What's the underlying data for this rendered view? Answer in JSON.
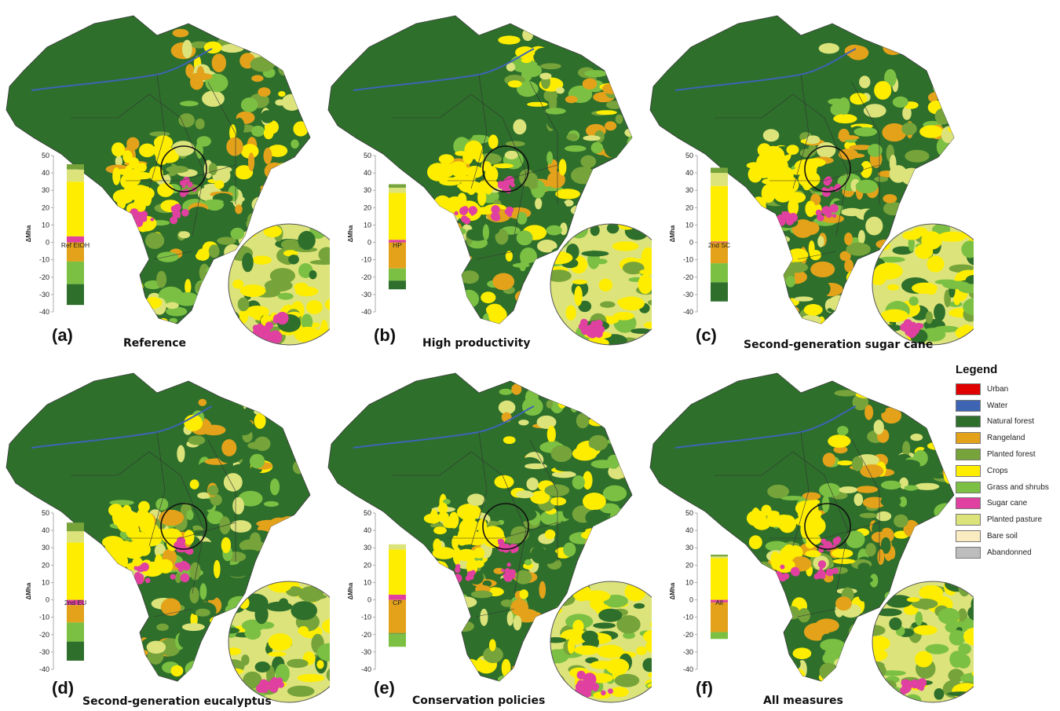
{
  "figure": {
    "panels": [
      {
        "letter": "(a)",
        "title": "Reference",
        "bar_label": "Ref EtOH"
      },
      {
        "letter": "(b)",
        "title": "High productivity",
        "bar_label": "HP"
      },
      {
        "letter": "(c)",
        "title": "Second-generation sugar cane",
        "bar_label": "2nd SC"
      },
      {
        "letter": "(d)",
        "title": "Second-generation eucalyptus",
        "bar_label": "2nd EU"
      },
      {
        "letter": "(e)",
        "title": "Conservation policies",
        "bar_label": "CP"
      },
      {
        "letter": "(f)",
        "title": "All measures",
        "bar_label": "All"
      }
    ],
    "bar_axis": {
      "label": "ΔMha",
      "ticks": [
        "50",
        "40",
        "30",
        "20",
        "10",
        "0",
        "-10",
        "-20",
        "-30",
        "-40"
      ],
      "ylim": [
        -40,
        50
      ]
    }
  },
  "legend": {
    "title": "Legend",
    "items": [
      {
        "label": "Urban",
        "color": "#e00000"
      },
      {
        "label": "Water",
        "color": "#3e64b4"
      },
      {
        "label": "Natural forest",
        "color": "#2e6f2b"
      },
      {
        "label": "Rangeland",
        "color": "#e3a21a"
      },
      {
        "label": "Planted forest",
        "color": "#76a33a"
      },
      {
        "label": "Crops",
        "color": "#ffed00"
      },
      {
        "label": "Grass and shrubs",
        "color": "#7bc043"
      },
      {
        "label": "Sugar cane",
        "color": "#e040a0"
      },
      {
        "label": "Planted pasture",
        "color": "#dbe37a"
      },
      {
        "label": "Bare soil",
        "color": "#fbebc0"
      },
      {
        "label": "Abandonned",
        "color": "#bdbdbd"
      }
    ]
  },
  "chart_data": [
    {
      "type": "bar",
      "title": "Reference",
      "category": "Ref EtOH",
      "stack_units": "ΔMha",
      "ylim": [
        -40,
        50
      ],
      "positive": [
        {
          "class": "Sugar cane",
          "value": 3.5
        },
        {
          "class": "Crops",
          "value": 31.5
        },
        {
          "class": "Planted pasture",
          "value": 7
        },
        {
          "class": "Planted forest",
          "value": 3
        }
      ],
      "negative": [
        {
          "class": "Rangeland",
          "value": -11
        },
        {
          "class": "Grass and shrubs",
          "value": -13
        },
        {
          "class": "Natural forest",
          "value": -12
        }
      ]
    },
    {
      "type": "bar",
      "title": "High productivity",
      "category": "HP",
      "stack_units": "ΔMha",
      "ylim": [
        -40,
        50
      ],
      "positive": [
        {
          "class": "Sugar cane",
          "value": 1.5
        },
        {
          "class": "Crops",
          "value": 27
        },
        {
          "class": "Planted pasture",
          "value": 3
        },
        {
          "class": "Planted forest",
          "value": 2
        }
      ],
      "negative": [
        {
          "class": "Rangeland",
          "value": -15
        },
        {
          "class": "Grass and shrubs",
          "value": -7
        },
        {
          "class": "Natural forest",
          "value": -5
        }
      ]
    },
    {
      "type": "bar",
      "title": "Second-generation sugar cane",
      "category": "2nd SC",
      "stack_units": "ΔMha",
      "ylim": [
        -40,
        50
      ],
      "positive": [
        {
          "class": "Sugar cane",
          "value": 0.5
        },
        {
          "class": "Crops",
          "value": 32
        },
        {
          "class": "Planted pasture",
          "value": 7.5
        },
        {
          "class": "Planted forest",
          "value": 3
        }
      ],
      "negative": [
        {
          "class": "Rangeland",
          "value": -12
        },
        {
          "class": "Grass and shrubs",
          "value": -11
        },
        {
          "class": "Natural forest",
          "value": -11
        }
      ]
    },
    {
      "type": "bar",
      "title": "Second-generation eucalyptus",
      "category": "2nd EU",
      "stack_units": "ΔMha",
      "ylim": [
        -40,
        50
      ],
      "positive": [
        {
          "class": "Crops",
          "value": 33
        },
        {
          "class": "Planted pasture",
          "value": 6.5
        },
        {
          "class": "Planted forest",
          "value": 5
        }
      ],
      "negative": [
        {
          "class": "Sugar cane",
          "value": -3
        },
        {
          "class": "Rangeland",
          "value": -10
        },
        {
          "class": "Grass and shrubs",
          "value": -11
        },
        {
          "class": "Natural forest",
          "value": -11
        }
      ]
    },
    {
      "type": "bar",
      "title": "Conservation policies",
      "category": "CP",
      "stack_units": "ΔMha",
      "ylim": [
        -40,
        50
      ],
      "positive": [
        {
          "class": "Sugar cane",
          "value": 3
        },
        {
          "class": "Crops",
          "value": 26
        },
        {
          "class": "Planted pasture",
          "value": 3
        }
      ],
      "negative": [
        {
          "class": "Rangeland",
          "value": -19
        },
        {
          "class": "Planted forest",
          "value": -1
        },
        {
          "class": "Grass and shrubs",
          "value": -7
        }
      ]
    },
    {
      "type": "bar",
      "title": "All measures",
      "category": "All",
      "stack_units": "ΔMha",
      "ylim": [
        -40,
        50
      ],
      "positive": [
        {
          "class": "Crops",
          "value": 24
        },
        {
          "class": "Planted pasture",
          "value": 1
        },
        {
          "class": "Planted forest",
          "value": 1
        }
      ],
      "negative": [
        {
          "class": "Sugar cane",
          "value": -1.5
        },
        {
          "class": "Rangeland",
          "value": -17
        },
        {
          "class": "Grass and shrubs",
          "value": -4
        }
      ]
    }
  ]
}
